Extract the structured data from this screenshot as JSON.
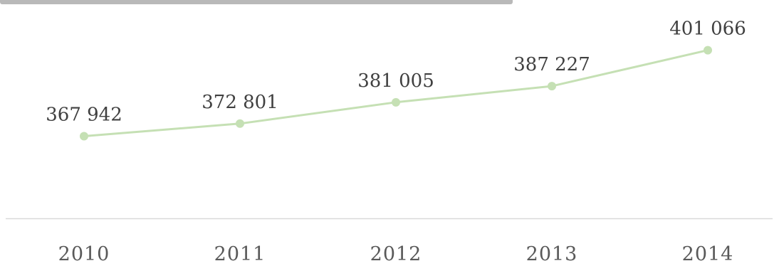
{
  "chart_data": {
    "type": "line",
    "title": "",
    "xlabel": "",
    "ylabel": "",
    "categories": [
      "2010",
      "2011",
      "2012",
      "2013",
      "2014"
    ],
    "series": [
      {
        "values": [
          367942,
          372801,
          381005,
          387227,
          401066
        ],
        "labels": [
          "367 942",
          "372 801",
          "381 005",
          "387 227",
          "401 066"
        ]
      }
    ],
    "ylim": [
      350000,
      410000
    ],
    "grid": false,
    "legend": "none",
    "colors": {
      "line": "#c5e0b4",
      "marker": "#c5e0b4",
      "axis": "#d9d9d9",
      "label_text": "#404040",
      "tick_text": "#595959"
    }
  }
}
